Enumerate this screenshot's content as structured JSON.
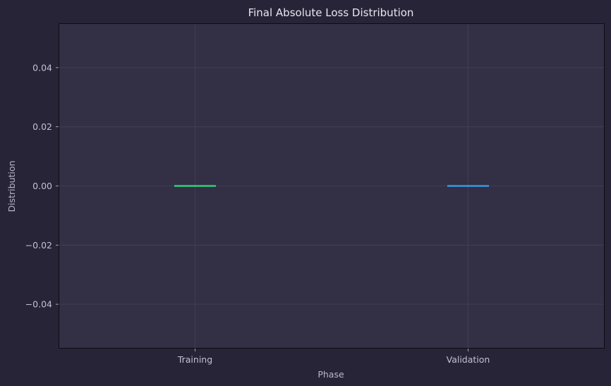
{
  "chart_data": {
    "type": "box",
    "title": "Final Absolute Loss Distribution",
    "xlabel": "Phase",
    "ylabel": "Distribution",
    "categories": [
      "Training",
      "Validation"
    ],
    "series": [
      {
        "category": "Training",
        "color": "#2ecc71",
        "min": 0.0,
        "q1": 0.0,
        "median": 0.0,
        "q3": 0.0,
        "max": 0.0
      },
      {
        "category": "Validation",
        "color": "#3498db",
        "min": 0.0,
        "q1": 0.0,
        "median": 0.0,
        "q3": 0.0,
        "max": 0.0
      }
    ],
    "ylim": [
      -0.055,
      0.055
    ],
    "yticks": [
      -0.04,
      -0.02,
      0.0,
      0.02,
      0.04
    ],
    "ytick_labels": [
      "−0.04",
      "−0.02",
      "0.00",
      "0.02",
      "0.04"
    ],
    "grid": true,
    "colors": {
      "figure_bg": "#282438",
      "plot_bg": "#332f45",
      "grid": "#464259",
      "spine": "#0d0b14"
    }
  }
}
